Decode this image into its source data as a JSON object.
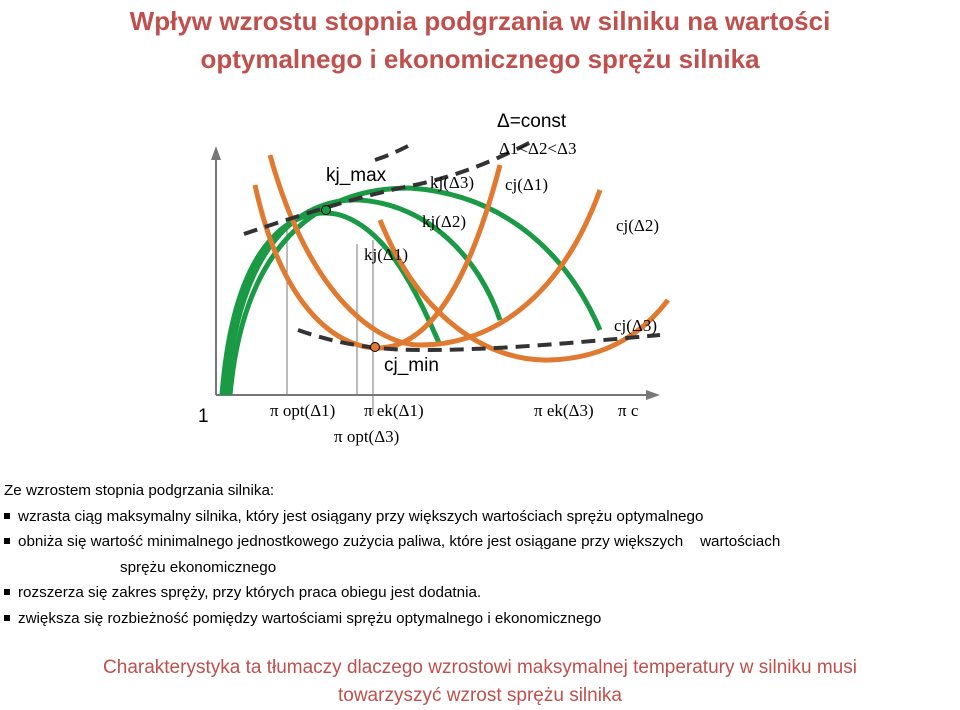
{
  "title": {
    "line1": "Wpływ wzrostu stopnia podgrzania w silniku na wartości",
    "line2": "optymalnego i ekonomicznego sprężu silnika"
  },
  "diagram": {
    "legend_const": "Δ=const",
    "legend_order": "Δ1<Δ2<Δ3",
    "kj_max": "kj_max",
    "cj_min": "cj_min",
    "one": "1",
    "curve_labels": {
      "kj_d1": "kj(Δ1)",
      "kj_d2": "kj(Δ2)",
      "kj_d3": "kj(Δ3)",
      "cj_d1": "cj(Δ1)",
      "cj_d2": "cj(Δ2)",
      "cj_d3": "cj(Δ3)"
    },
    "axis_labels": {
      "pi_opt_d1": "π opt(Δ1)",
      "pi_ek_d1": "π ek(Δ1)",
      "pi_opt_d3": "π opt(Δ3)",
      "pi_ek_d3": "π ek(Δ3)",
      "pi_c": "π c"
    },
    "colors": {
      "green": "#1a9a45",
      "orange": "#e07a30",
      "envelope": "#333333"
    }
  },
  "text": {
    "intro": "Ze wzrostem stopnia podgrzania silnika:",
    "bullets": [
      "wzrasta ciąg maksymalny silnika, który jest osiągany przy większych wartościach sprężu optymalnego",
      "obniża się wartość minimalnego jednostkowego zużycia paliwa, które jest osiągane przy większych    wartościach",
      "rozszerza się zakres spręży, przy których praca obiegu jest dodatnia.",
      "zwiększa się rozbieżność pomiędzy wartościami sprężu optymalnego i ekonomicznego"
    ],
    "bullet2_cont": "sprężu ekonomicznego"
  },
  "footer": {
    "line1": "Charakterystyka ta tłumaczy dlaczego wzrostowi maksymalnej temperatury w silniku musi",
    "line2": "towarzyszyć wzrost sprężu silnika"
  }
}
